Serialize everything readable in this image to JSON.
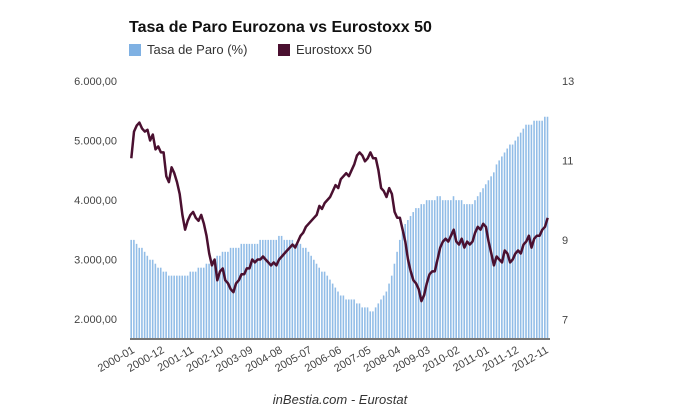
{
  "chart_data": {
    "type": "bar+line",
    "title": "Tasa de Paro Eurozona vs Eurostoxx 50",
    "source": "inBestia.com - Eurostat",
    "legend": {
      "placement": "top-left",
      "entries": [
        {
          "name": "Tasa de Paro (%)",
          "color": "#7fb1e3",
          "mark": "bar"
        },
        {
          "name": "Eurostoxx 50",
          "color": "#4a1030",
          "mark": "line"
        }
      ]
    },
    "x_start": "2000-01",
    "x_end": "2012-12",
    "x_tick_labels": [
      "2000-01",
      "2000-12",
      "2001-11",
      "2002-10",
      "2003-09",
      "2004-08",
      "2005-07",
      "2006-06",
      "2007-05",
      "2008-04",
      "2009-03",
      "2010-02",
      "2011-01",
      "2011-12",
      "2012-11"
    ],
    "x_tick_step_months": 11,
    "y_left": {
      "label": "Eurostoxx 50",
      "range": [
        1680,
        6000
      ],
      "ticks": [
        2000,
        3000,
        4000,
        5000,
        6000
      ],
      "tick_labels": [
        "2.000,00",
        "3.000,00",
        "4.000,00",
        "5.000,00",
        "6.000,00"
      ]
    },
    "y_right": {
      "label": "Tasa de Paro (%)",
      "range": [
        6.53,
        13
      ],
      "ticks": [
        7,
        9,
        11,
        13
      ],
      "tick_labels": [
        "7",
        "9",
        "11",
        "13"
      ]
    },
    "grid": false,
    "series": [
      {
        "name": "Tasa de Paro (%)",
        "type": "bar",
        "axis": "right",
        "values": [
          9.0,
          9.0,
          8.9,
          8.8,
          8.8,
          8.7,
          8.6,
          8.5,
          8.5,
          8.4,
          8.3,
          8.3,
          8.2,
          8.2,
          8.1,
          8.1,
          8.1,
          8.1,
          8.1,
          8.1,
          8.1,
          8.1,
          8.2,
          8.2,
          8.2,
          8.3,
          8.3,
          8.3,
          8.4,
          8.4,
          8.5,
          8.5,
          8.6,
          8.6,
          8.7,
          8.7,
          8.7,
          8.8,
          8.8,
          8.8,
          8.8,
          8.9,
          8.9,
          8.9,
          8.9,
          8.9,
          8.9,
          8.9,
          9.0,
          9.0,
          9.0,
          9.0,
          9.0,
          9.0,
          9.0,
          9.1,
          9.1,
          9.0,
          9.0,
          9.0,
          9.0,
          8.9,
          8.9,
          8.9,
          8.8,
          8.8,
          8.7,
          8.6,
          8.5,
          8.4,
          8.3,
          8.2,
          8.2,
          8.1,
          8.0,
          7.9,
          7.8,
          7.7,
          7.6,
          7.6,
          7.5,
          7.5,
          7.5,
          7.5,
          7.4,
          7.4,
          7.3,
          7.3,
          7.3,
          7.2,
          7.2,
          7.3,
          7.4,
          7.5,
          7.6,
          7.7,
          7.9,
          8.1,
          8.4,
          8.7,
          9.0,
          9.2,
          9.4,
          9.5,
          9.6,
          9.7,
          9.8,
          9.8,
          9.9,
          9.9,
          10.0,
          10.0,
          10.0,
          10.0,
          10.1,
          10.1,
          10.0,
          10.0,
          10.0,
          10.0,
          10.1,
          10.0,
          10.0,
          10.0,
          9.9,
          9.9,
          9.9,
          9.9,
          10.0,
          10.1,
          10.2,
          10.3,
          10.4,
          10.5,
          10.6,
          10.7,
          10.9,
          11.0,
          11.1,
          11.2,
          11.3,
          11.4,
          11.4,
          11.5,
          11.6,
          11.7,
          11.8,
          11.9,
          11.9,
          11.9,
          12.0,
          12.0,
          12.0,
          12.0,
          12.1,
          12.1
        ]
      },
      {
        "name": "Eurostoxx 50",
        "type": "line",
        "axis": "left",
        "values": [
          4700,
          5150,
          5250,
          5300,
          5200,
          5150,
          5180,
          5000,
          5100,
          4850,
          4900,
          4800,
          4800,
          4400,
          4300,
          4550,
          4450,
          4300,
          4100,
          3750,
          3500,
          3650,
          3750,
          3800,
          3700,
          3650,
          3750,
          3600,
          3400,
          3100,
          2900,
          3000,
          2650,
          2800,
          2850,
          2650,
          2600,
          2500,
          2450,
          2600,
          2650,
          2750,
          2750,
          2850,
          2850,
          3000,
          2950,
          3000,
          3000,
          3050,
          3000,
          2950,
          2900,
          2950,
          2900,
          3000,
          3050,
          3100,
          3150,
          3200,
          3250,
          3200,
          3300,
          3400,
          3450,
          3550,
          3600,
          3650,
          3700,
          3750,
          3900,
          3850,
          3950,
          4000,
          4050,
          4150,
          4250,
          4200,
          4350,
          4400,
          4450,
          4400,
          4500,
          4600,
          4750,
          4800,
          4750,
          4650,
          4700,
          4800,
          4700,
          4700,
          4500,
          4200,
          4150,
          4050,
          4200,
          4100,
          3800,
          3700,
          3700,
          3500,
          3300,
          3000,
          2800,
          2650,
          2600,
          2500,
          2300,
          2400,
          2600,
          2750,
          2800,
          2800,
          3000,
          3200,
          3300,
          3350,
          3300,
          3400,
          3500,
          3300,
          3250,
          3350,
          3200,
          3300,
          3250,
          3300,
          3450,
          3550,
          3500,
          3600,
          3550,
          3300,
          3100,
          2900,
          3050,
          3000,
          2950,
          3150,
          3100,
          2950,
          3000,
          3100,
          3150,
          3100,
          3250,
          3300,
          3400,
          3200,
          3350,
          3400,
          3400,
          3500,
          3550,
          3700
        ]
      }
    ]
  }
}
